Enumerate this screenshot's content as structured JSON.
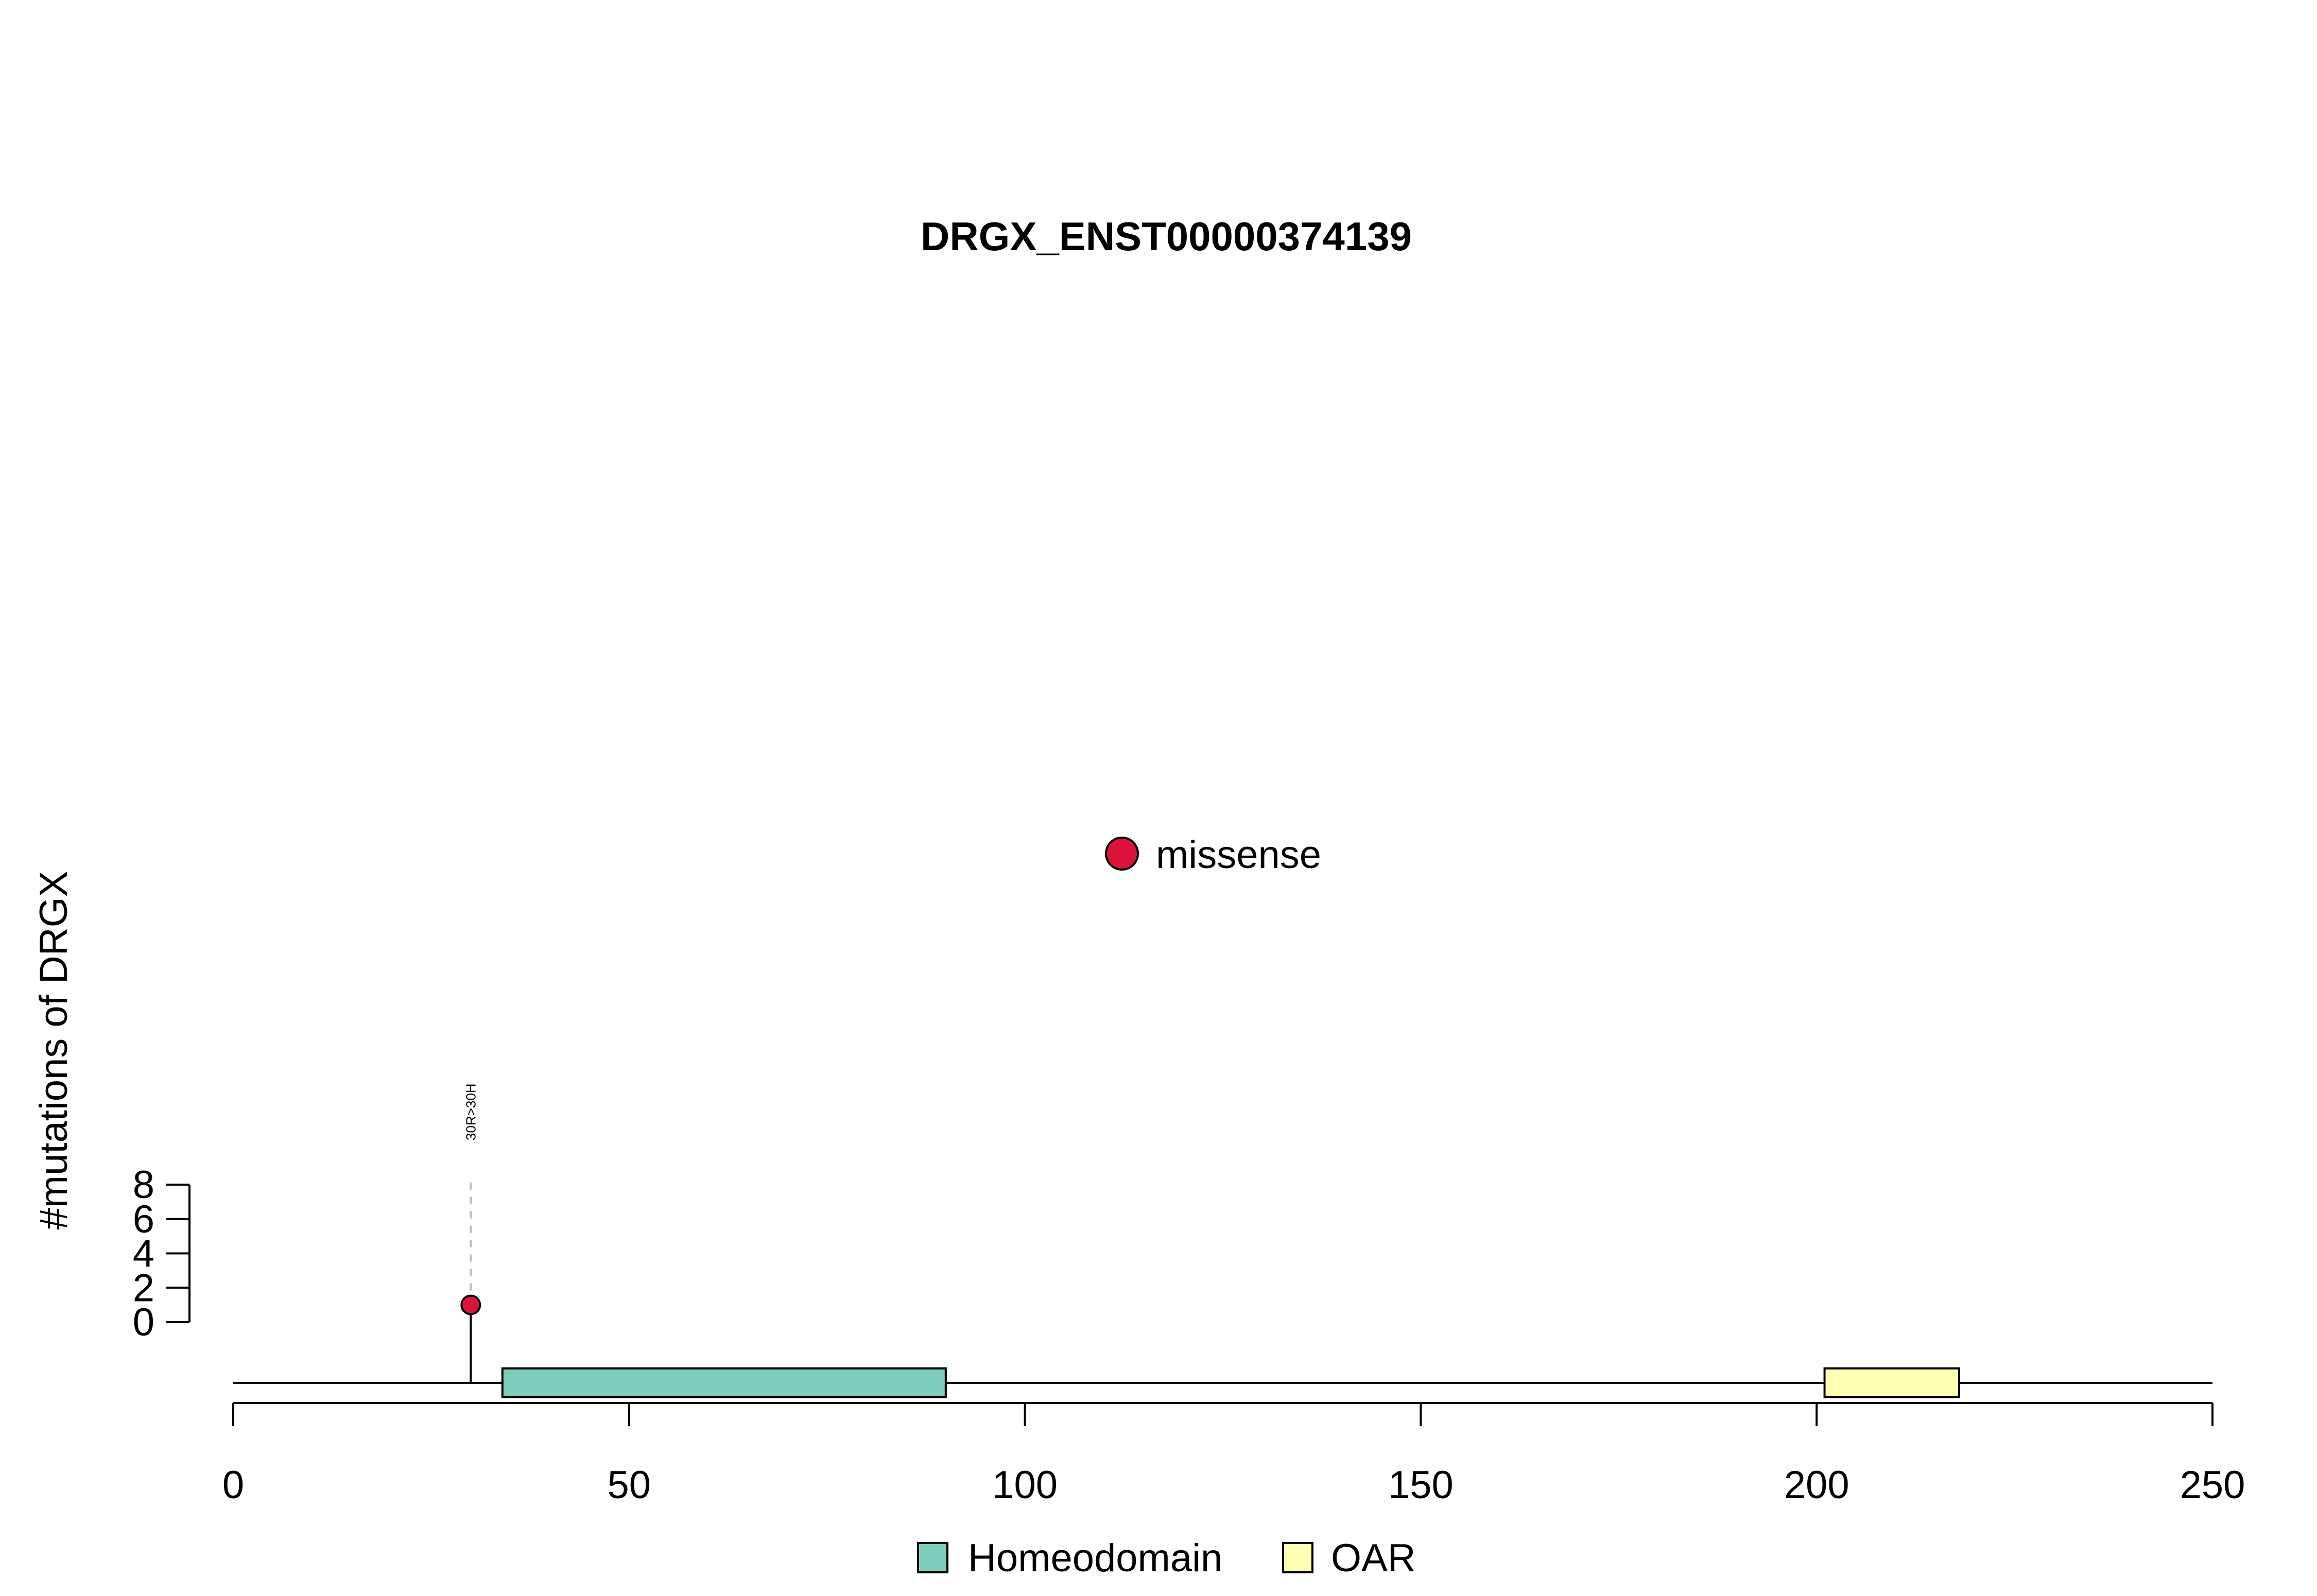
{
  "chart_data": {
    "type": "lollipop",
    "title": "DRGX_ENST00000374139",
    "ylabel": "#mutations of DRGX",
    "xlim": [
      0,
      250
    ],
    "ylim": [
      0,
      8
    ],
    "x_ticks": [
      0,
      50,
      100,
      150,
      200,
      250
    ],
    "y_ticks": [
      0,
      2,
      4,
      6,
      8
    ],
    "protein_length": 250,
    "mutations": [
      {
        "position": 30,
        "count": 1,
        "label": "30R>30H",
        "type": "missense",
        "color": "#DC143C"
      }
    ],
    "domains": [
      {
        "name": "Homeodomain",
        "start": 34,
        "end": 90,
        "color": "#7FCDBB"
      },
      {
        "name": "OAR",
        "start": 201,
        "end": 218,
        "color": "#FFFFB3"
      }
    ],
    "mutation_legend": [
      {
        "label": "missense",
        "color": "#DC143C"
      }
    ],
    "domain_legend": [
      {
        "label": "Homeodomain",
        "color": "#7FCDBB"
      },
      {
        "label": "OAR",
        "color": "#FFFFB3"
      }
    ]
  }
}
